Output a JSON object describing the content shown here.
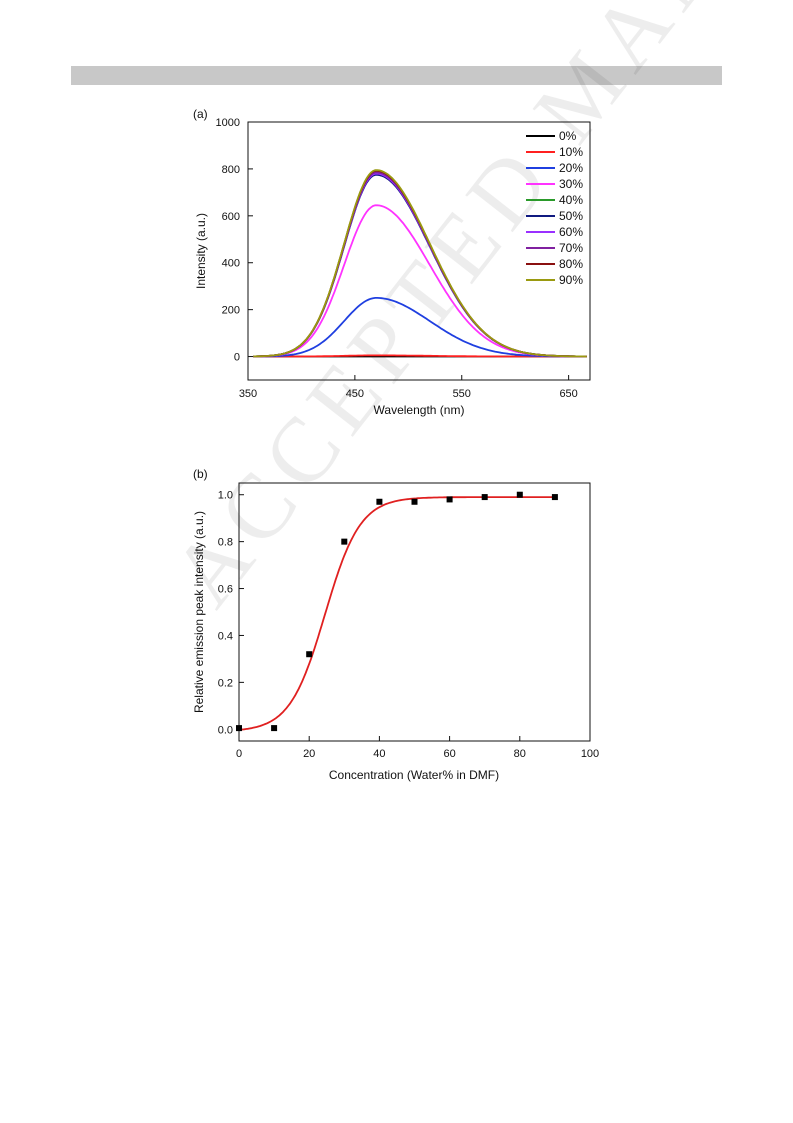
{
  "header_bar_color": "#c8c8c8",
  "watermark": "ACCEPTED MANUSCRIPT",
  "chart_data": [
    {
      "panel": "(a)",
      "type": "line",
      "xlabel": "Wavelength (nm)",
      "ylabel": "Intensity (a.u.)",
      "xlim": [
        350,
        670
      ],
      "ylim": [
        -100,
        1000
      ],
      "xticks": [
        350,
        450,
        550,
        650
      ],
      "yticks": [
        0,
        200,
        400,
        600,
        800,
        1000
      ],
      "grid": false,
      "legend_position": "top-right",
      "peak_wavelength": 470,
      "series": [
        {
          "name": "0%",
          "color": "#000000",
          "peak": 0
        },
        {
          "name": "10%",
          "color": "#ff2020",
          "peak": 5
        },
        {
          "name": "20%",
          "color": "#1f3fe0",
          "peak": 250
        },
        {
          "name": "30%",
          "color": "#ff33ff",
          "peak": 645
        },
        {
          "name": "40%",
          "color": "#2a9a2a",
          "peak": 790
        },
        {
          "name": "50%",
          "color": "#101a80",
          "peak": 775
        },
        {
          "name": "60%",
          "color": "#9a30ff",
          "peak": 780
        },
        {
          "name": "70%",
          "color": "#8020a0",
          "peak": 785
        },
        {
          "name": "80%",
          "color": "#8a1010",
          "peak": 792
        },
        {
          "name": "90%",
          "color": "#9a9a10",
          "peak": 795
        }
      ]
    },
    {
      "panel": "(b)",
      "type": "scatter",
      "xlabel": "Concentration (Water% in  DMF)",
      "ylabel": "Relative emission peak intensity (a.u.)",
      "xlim": [
        0,
        100
      ],
      "ylim": [
        -0.05,
        1.05
      ],
      "xticks": [
        0,
        20,
        40,
        60,
        80,
        100
      ],
      "yticks": [
        0.0,
        0.2,
        0.4,
        0.6,
        0.8,
        1.0
      ],
      "grid": false,
      "points": {
        "x": [
          0,
          10,
          20,
          30,
          40,
          50,
          60,
          70,
          80,
          90
        ],
        "y": [
          0.005,
          0.005,
          0.32,
          0.8,
          0.97,
          0.97,
          0.98,
          0.99,
          1.0,
          0.99
        ],
        "color": "#000000"
      },
      "fit": {
        "type": "sigmoid",
        "color": "#e02020",
        "min": -0.01,
        "max": 0.99,
        "x0": 24.5,
        "k": 5.0
      }
    }
  ]
}
